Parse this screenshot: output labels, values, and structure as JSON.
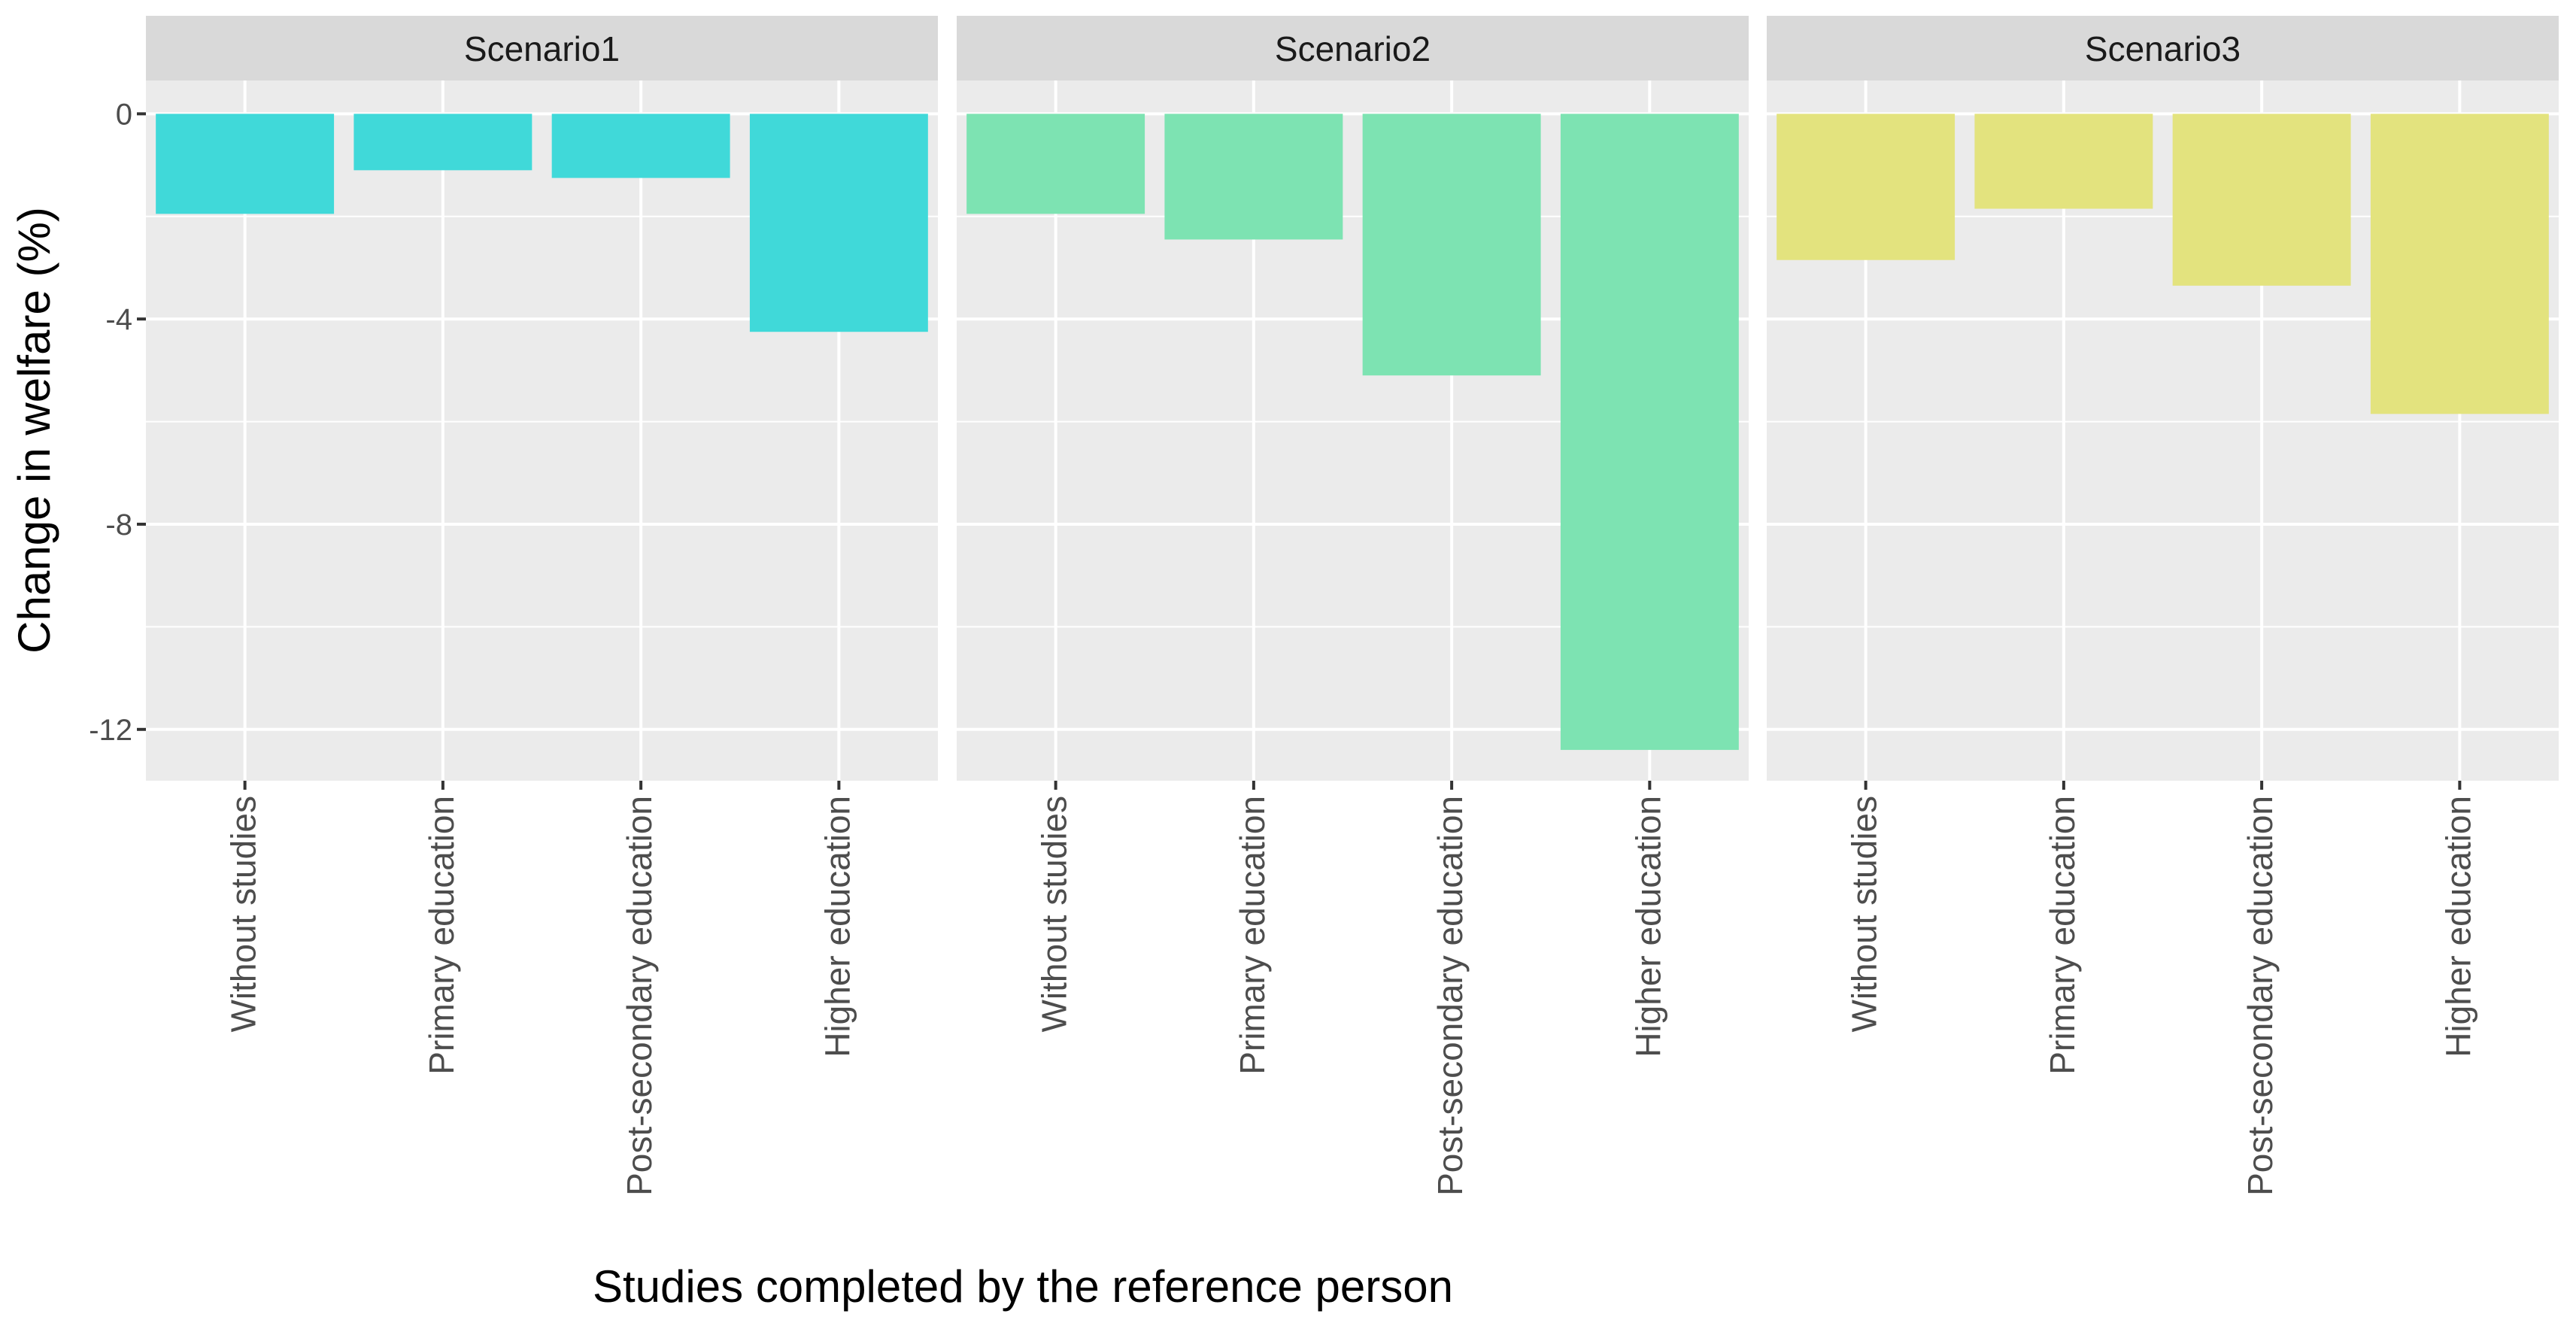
{
  "chart_data": {
    "type": "bar",
    "xlabel": "Studies completed by the reference person",
    "ylabel": "Change in welfare (%)",
    "ylim": [
      -13,
      0.65
    ],
    "yticks": [
      0,
      -4,
      -8,
      -12
    ],
    "ytick_labels": [
      "0",
      "-4",
      "-8",
      "-12"
    ],
    "grid": true,
    "categories": [
      "Without studies",
      "Primary education",
      "Post-secondary education",
      "Higher education"
    ],
    "panels": [
      {
        "name": "Scenario1",
        "color": "#40D9D9",
        "values": [
          -1.95,
          -1.1,
          -1.25,
          -4.25
        ]
      },
      {
        "name": "Scenario2",
        "color": "#7DE3B2",
        "values": [
          -1.95,
          -2.45,
          -5.1,
          -12.4
        ]
      },
      {
        "name": "Scenario3",
        "color": "#E3E37E",
        "values": [
          -2.85,
          -1.85,
          -3.35,
          -5.85
        ]
      }
    ],
    "colors": {
      "panel_background": "#EBEBEB",
      "strip_background": "#D9D9D9",
      "gridline": "#FFFFFF"
    }
  }
}
